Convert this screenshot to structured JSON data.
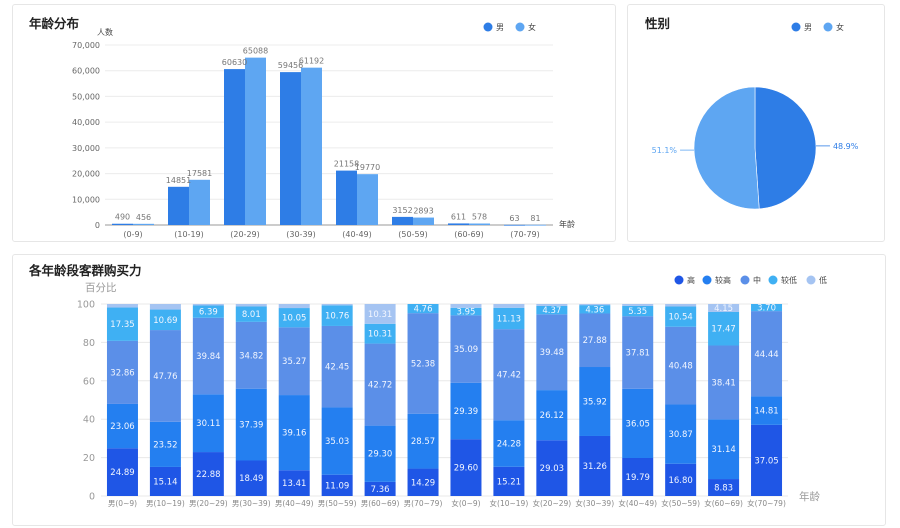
{
  "colors": {
    "male": "#2e7de6",
    "female": "#5ea6f2",
    "seg_high": "#1f56e6",
    "seg_mid_high": "#247ff0",
    "seg_mid": "#5b8fe8",
    "seg_mid_low": "#3fb0f3",
    "seg_low": "#a5c4f2"
  },
  "age_panel": {
    "title": "年龄分布",
    "y_unit": "人数",
    "x_unit": "年龄",
    "legend": [
      "男",
      "女"
    ]
  },
  "gender_panel": {
    "title": "性别",
    "legend": [
      "男",
      "女"
    ]
  },
  "power_panel": {
    "title": "各年龄段客群购买力",
    "y_unit": "百分比",
    "x_unit": "年龄",
    "legend": [
      "高",
      "较高",
      "中",
      "较低",
      "低"
    ]
  },
  "chart_data": [
    {
      "type": "bar",
      "title": "年龄分布",
      "ylabel": "人数",
      "xlabel": "年龄",
      "categories": [
        "(0-9)",
        "(10-19)",
        "(20-29)",
        "(30-39)",
        "(40-49)",
        "(50-59)",
        "(60-69)",
        "(70-79)"
      ],
      "yticks": [
        "0",
        "10,000",
        "20,000",
        "30,000",
        "40,000",
        "50,000",
        "60,000",
        "70,000"
      ],
      "ylim": [
        0,
        70000
      ],
      "legend_position": "top-right",
      "series": [
        {
          "name": "男",
          "values": [
            490,
            14851,
            60630,
            59456,
            21158,
            3152,
            611,
            63
          ]
        },
        {
          "name": "女",
          "values": [
            456,
            17581,
            65088,
            61192,
            19770,
            2893,
            578,
            81
          ]
        }
      ]
    },
    {
      "type": "pie",
      "title": "性别",
      "legend_position": "top-right",
      "labels": [
        "男",
        "女"
      ],
      "values": [
        48.9,
        51.1
      ],
      "value_labels": [
        "48.9%",
        "51.1%"
      ]
    },
    {
      "type": "bar",
      "stacked": true,
      "title": "各年龄段客群购买力",
      "ylabel": "百分比",
      "xlabel": "年龄",
      "ylim": [
        0,
        100
      ],
      "yticks": [
        "0",
        "20",
        "40",
        "60",
        "80",
        "100"
      ],
      "legend_position": "top-right",
      "categories": [
        "男(0~9)",
        "男(10~19)",
        "男(20~29)",
        "男(30~39)",
        "男(40~49)",
        "男(50~59)",
        "男(60~69)",
        "男(70~79)",
        "女(0~9)",
        "女(10~19)",
        "女(20~29)",
        "女(30~39)",
        "女(40~49)",
        "女(50~59)",
        "女(60~69)",
        "女(70~79)"
      ],
      "series": [
        {
          "name": "高",
          "values": [
            24.89,
            15.14,
            22.88,
            18.49,
            13.41,
            11.09,
            7.36,
            14.29,
            29.6,
            15.21,
            29.03,
            31.26,
            19.79,
            16.8,
            8.83,
            37.05
          ]
        },
        {
          "name": "较高",
          "values": [
            23.06,
            23.52,
            30.11,
            37.39,
            39.16,
            35.03,
            29.3,
            28.57,
            29.39,
            24.28,
            26.12,
            35.92,
            36.05,
            30.87,
            31.14,
            14.81
          ]
        },
        {
          "name": "中",
          "values": [
            32.86,
            47.76,
            39.84,
            34.82,
            35.27,
            42.45,
            42.72,
            52.38,
            35.09,
            47.42,
            39.48,
            27.88,
            37.81,
            40.48,
            38.41,
            44.44
          ]
        },
        {
          "name": "较低",
          "values": [
            17.35,
            10.69,
            6.39,
            8.01,
            10.05,
            10.76,
            10.31,
            4.76,
            3.95,
            11.13,
            4.37,
            4.36,
            5.35,
            10.54,
            17.47,
            3.7
          ]
        },
        {
          "name": "低",
          "values": [
            1.84,
            2.89,
            0.78,
            1.29,
            2.11,
            0.67,
            10.31,
            0.0,
            1.97,
            1.96,
            1.0,
            0.58,
            1.0,
            1.31,
            4.15,
            0.0
          ]
        }
      ]
    }
  ]
}
